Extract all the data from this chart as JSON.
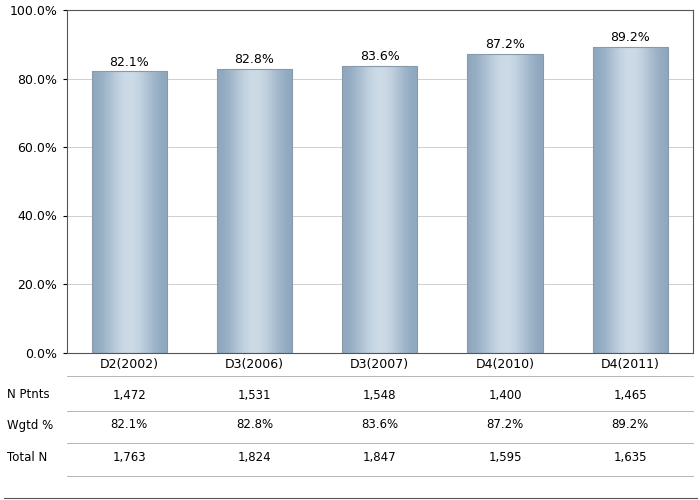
{
  "categories": [
    "D2(2002)",
    "D3(2006)",
    "D3(2007)",
    "D4(2010)",
    "D4(2011)"
  ],
  "values": [
    82.1,
    82.8,
    83.6,
    87.2,
    89.2
  ],
  "value_labels": [
    "82.1%",
    "82.8%",
    "83.6%",
    "87.2%",
    "89.2%"
  ],
  "ylim": [
    0,
    100
  ],
  "yticks": [
    0,
    20,
    40,
    60,
    80,
    100
  ],
  "ytick_labels": [
    "0.0%",
    "20.0%",
    "40.0%",
    "60.0%",
    "80.0%",
    "100.0%"
  ],
  "n_ptnts": [
    "1,472",
    "1,531",
    "1,548",
    "1,400",
    "1,465"
  ],
  "wgtd_pct": [
    "82.1%",
    "82.8%",
    "83.6%",
    "87.2%",
    "89.2%"
  ],
  "total_n": [
    "1,763",
    "1,824",
    "1,847",
    "1,595",
    "1,635"
  ],
  "row_labels": [
    "N Ptnts",
    "Wgtd %",
    "Total N"
  ],
  "background_color": "#ffffff",
  "grid_color": "#d0d0d0",
  "bar_width": 0.6,
  "font_size_labels": 9,
  "font_size_table": 8.5,
  "font_size_ticks": 9,
  "bar_color_left": "#8fa8bf",
  "bar_color_mid": "#ccdae6",
  "bar_color_right": "#8fa8bf",
  "bar_edge_color": "#8899aa"
}
